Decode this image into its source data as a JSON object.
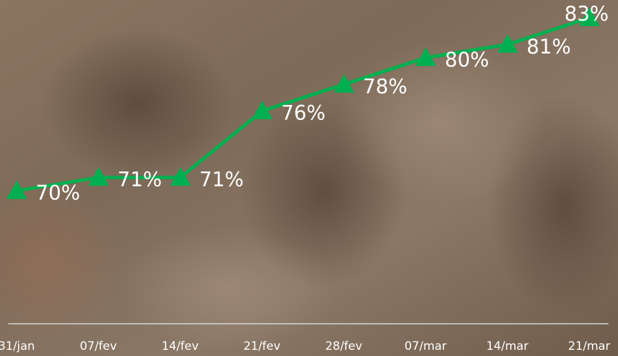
{
  "chart_data": {
    "type": "line",
    "categories": [
      "31/jan",
      "07/fev",
      "14/fev",
      "21/fev",
      "28/fev",
      "07/mar",
      "14/mar",
      "21/mar"
    ],
    "values": [
      70,
      71,
      71,
      76,
      78,
      80,
      81,
      83
    ],
    "value_labels": [
      "70%",
      "71%",
      "71%",
      "76%",
      "78%",
      "80%",
      "81%",
      "83%"
    ],
    "color": "#00b050",
    "marker": "triangle",
    "ylim": [
      60,
      85
    ]
  }
}
